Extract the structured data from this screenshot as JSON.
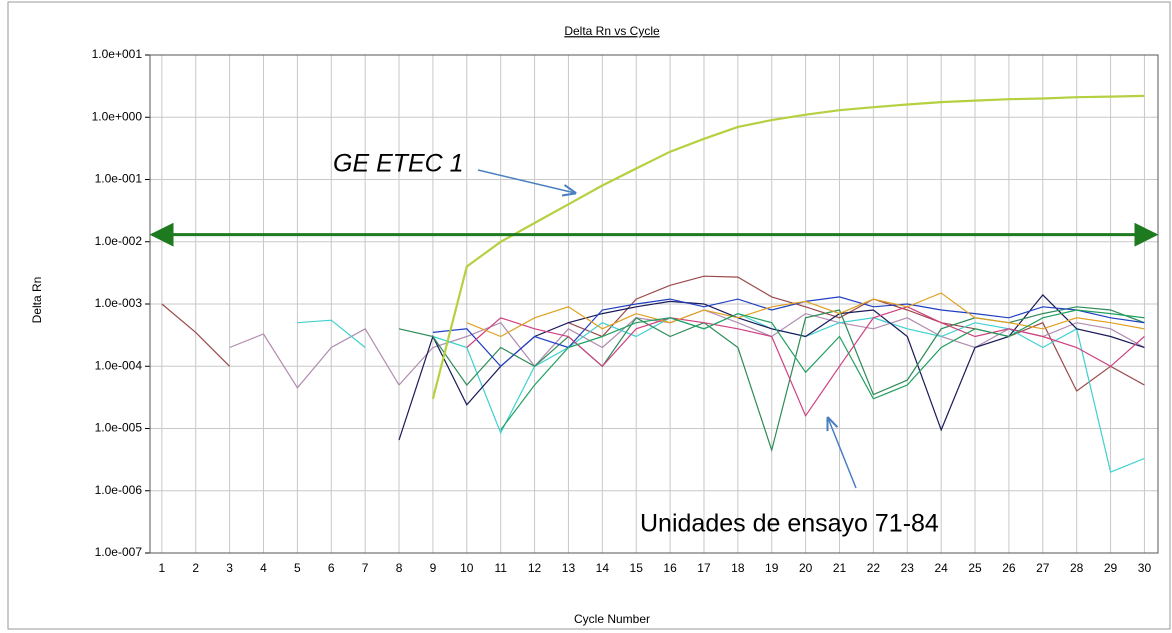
{
  "chart_data": {
    "type": "line",
    "title": "Delta Rn vs Cycle",
    "xlabel": "Cycle Number",
    "ylabel": "Delta Rn",
    "yscale": "log",
    "grid": true,
    "x": [
      1,
      2,
      3,
      4,
      5,
      6,
      7,
      8,
      9,
      10,
      11,
      12,
      13,
      14,
      15,
      16,
      17,
      18,
      19,
      20,
      21,
      22,
      23,
      24,
      25,
      26,
      27,
      28,
      29,
      30
    ],
    "xlim": [
      0.65,
      30.4
    ],
    "xticks": [
      1,
      2,
      3,
      4,
      5,
      6,
      7,
      8,
      9,
      10,
      11,
      12,
      13,
      14,
      15,
      16,
      17,
      18,
      19,
      20,
      21,
      22,
      23,
      24,
      25,
      26,
      27,
      28,
      29,
      30
    ],
    "ylim": [
      1e-07,
      10
    ],
    "yticks": [
      {
        "value": 1e-07,
        "label": "1.0e-007"
      },
      {
        "value": 1e-06,
        "label": "1.0e-006"
      },
      {
        "value": 1e-05,
        "label": "1.0e-005"
      },
      {
        "value": 0.0001,
        "label": "1.0e-004"
      },
      {
        "value": 0.001,
        "label": "1.0e-003"
      },
      {
        "value": 0.01,
        "label": "1.0e-002"
      },
      {
        "value": 0.1,
        "label": "1.0e-001"
      },
      {
        "value": 1,
        "label": "1.0e+000"
      },
      {
        "value": 10,
        "label": "1.0e+001"
      }
    ],
    "threshold": 0.013,
    "threshold_color": "#1e7a1e",
    "annotations": [
      "GE ETEC 1",
      "Unidades de ensayo 71-84"
    ],
    "series": [
      {
        "color": "#9b4a4a",
        "values": [
          0.001,
          0.00035,
          0.0001,
          null,
          null,
          null,
          null,
          null,
          null,
          null,
          null,
          null,
          0.0005,
          0.0003,
          0.0012,
          0.002,
          0.0028,
          0.0027,
          0.0013,
          0.0009,
          0.0006,
          0.0012,
          0.0008,
          0.0005,
          0.0004,
          0.0003,
          0.0005,
          4e-05,
          0.0001,
          5e-05
        ]
      },
      {
        "color": "#b08cb0",
        "values": [
          null,
          null,
          0.0002,
          0.00033,
          4.5e-05,
          0.0002,
          0.0004,
          5e-05,
          0.0002,
          0.0003,
          0.0005,
          0.0001,
          0.0004,
          0.0002,
          0.0006,
          0.0005,
          0.0008,
          0.0005,
          0.0003,
          0.0007,
          0.0005,
          0.0004,
          0.0006,
          0.0003,
          0.0002,
          0.0004,
          0.0003,
          0.0005,
          0.0004,
          0.0002
        ]
      },
      {
        "color": "#40d0d0",
        "values": [
          null,
          null,
          null,
          null,
          0.0005,
          0.00055,
          0.0002,
          null,
          0.0003,
          0.0002,
          8.5e-06,
          0.0001,
          0.0002,
          0.0005,
          0.0003,
          0.0006,
          0.0004,
          0.0007,
          0.0004,
          0.0003,
          0.0005,
          0.0006,
          0.0004,
          0.0003,
          0.0005,
          0.0004,
          0.0002,
          0.0004,
          2e-06,
          3.3e-06
        ]
      },
      {
        "color": "#1a1a5a",
        "values": [
          null,
          null,
          null,
          null,
          null,
          null,
          null,
          6.5e-06,
          0.0003,
          2.4e-05,
          0.0001,
          0.0003,
          0.0005,
          0.0007,
          0.0009,
          0.0011,
          0.001,
          0.0006,
          0.0004,
          0.0003,
          0.0007,
          0.0008,
          0.0003,
          9.5e-06,
          0.0002,
          0.0003,
          0.0014,
          0.0004,
          0.0003,
          0.0002
        ]
      },
      {
        "color": "#2e8b57",
        "values": [
          null,
          null,
          null,
          null,
          null,
          null,
          null,
          0.0004,
          0.0003,
          5e-05,
          0.0002,
          0.0001,
          0.0003,
          0.0001,
          0.0006,
          0.0003,
          0.0005,
          0.0002,
          4.5e-06,
          0.0006,
          0.0008,
          3.5e-05,
          6e-05,
          0.0004,
          0.0006,
          0.0005,
          0.0007,
          0.0009,
          0.0008,
          0.0005
        ]
      },
      {
        "color": "#2040c0",
        "values": [
          null,
          null,
          null,
          null,
          null,
          null,
          null,
          null,
          0.00035,
          0.0004,
          0.0001,
          0.0003,
          0.0002,
          0.0008,
          0.001,
          0.0012,
          0.0009,
          0.0012,
          0.0008,
          0.0011,
          0.0013,
          0.0009,
          0.001,
          0.0008,
          0.0007,
          0.0006,
          0.0009,
          0.0008,
          0.0006,
          0.0005
        ]
      },
      {
        "color": "#d04080",
        "values": [
          null,
          null,
          null,
          null,
          null,
          null,
          null,
          null,
          null,
          0.0002,
          0.0006,
          0.0004,
          0.0003,
          0.0001,
          0.0004,
          0.0006,
          0.0005,
          0.0004,
          0.0003,
          1.6e-05,
          0.0001,
          0.0006,
          0.0009,
          0.0005,
          0.0003,
          0.0004,
          0.0003,
          0.0002,
          0.0001,
          0.0003
        ]
      },
      {
        "color": "#e0a020",
        "values": [
          null,
          null,
          null,
          null,
          null,
          null,
          null,
          null,
          null,
          0.0005,
          0.0003,
          0.0006,
          0.0009,
          0.0004,
          0.0007,
          0.0005,
          0.0008,
          0.0006,
          0.0009,
          0.0011,
          0.0007,
          0.0012,
          0.0009,
          0.0015,
          0.0006,
          0.0005,
          0.0004,
          0.0006,
          0.0005,
          0.0004
        ]
      },
      {
        "color": "#20a060",
        "values": [
          null,
          null,
          null,
          null,
          null,
          null,
          null,
          null,
          null,
          null,
          9.5e-06,
          5e-05,
          0.0002,
          0.0003,
          0.0005,
          0.0006,
          0.0004,
          0.0007,
          0.0005,
          8e-05,
          0.0003,
          3e-05,
          5e-05,
          0.0002,
          0.0004,
          0.0003,
          0.0006,
          0.0008,
          0.0007,
          0.0006
        ]
      },
      {
        "color": "#b5d040",
        "values": [
          null,
          null,
          null,
          null,
          null,
          null,
          null,
          null,
          3e-05,
          0.004,
          0.01,
          0.02,
          0.04,
          0.08,
          0.15,
          0.28,
          0.45,
          0.7,
          0.9,
          1.1,
          1.3,
          1.45,
          1.6,
          1.75,
          1.85,
          1.95,
          2.0,
          2.1,
          2.15,
          2.2
        ]
      }
    ]
  }
}
